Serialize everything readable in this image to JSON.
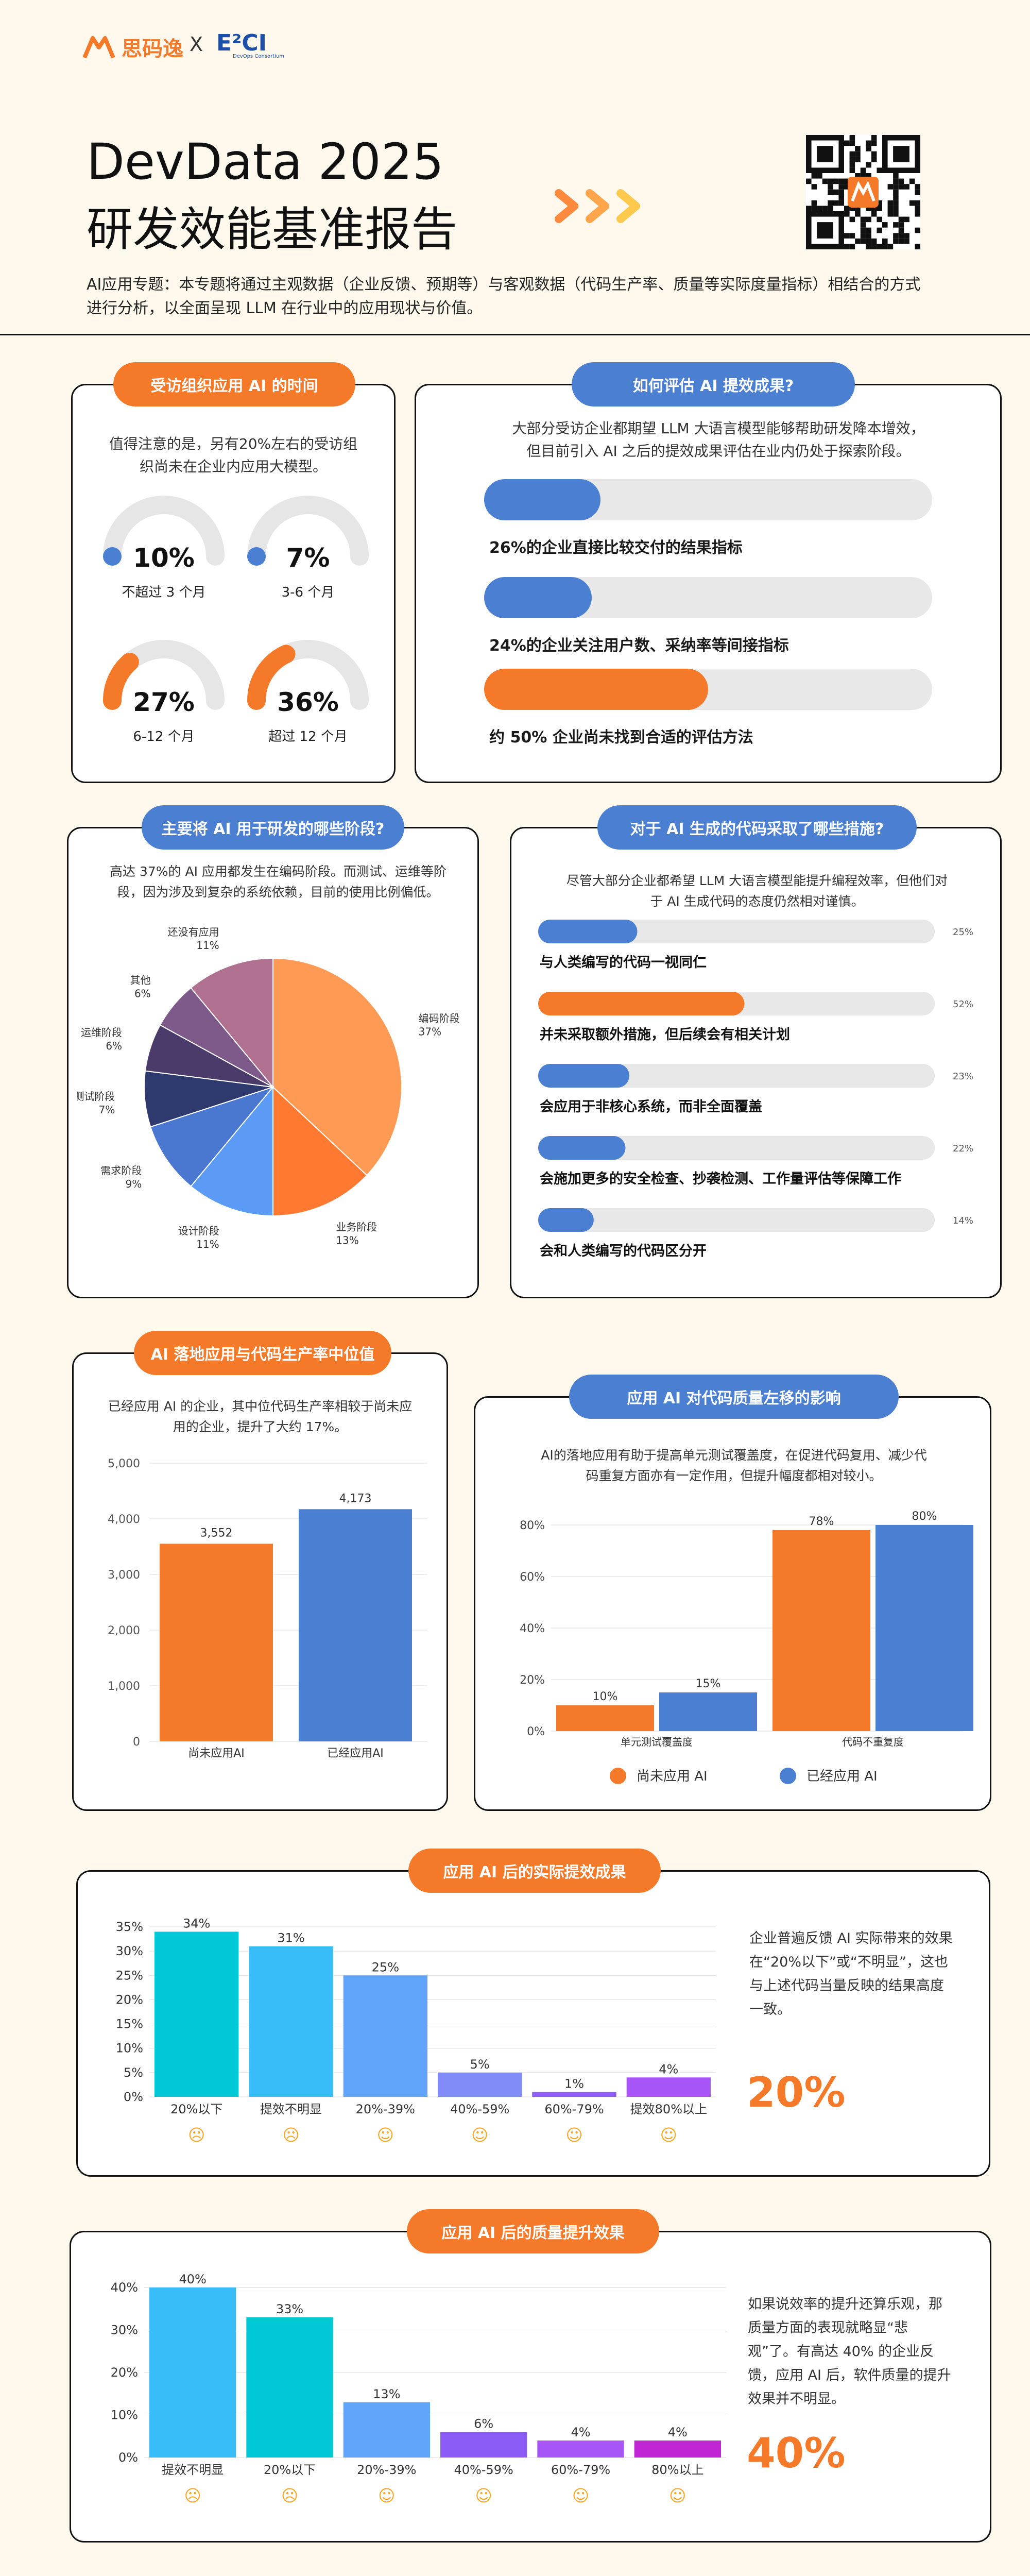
{
  "header": {
    "brand1": "思码逸",
    "times": "X",
    "brand2": "E²CI",
    "brand2_sub": "DevOps Consortium",
    "title_line1": "DevData 2025",
    "title_line2": "研发效能基准报告",
    "intro": "AI应用专题：本专题将通过主观数据（企业反馈、预期等）与客观数据（代码生产率、质量等实际度量指标）相结合的方式进行分析，以全面呈现 LLM 在行业中的应用现状与价值。"
  },
  "colors": {
    "orange": "#f47a2a",
    "blue": "#4b7fd1",
    "cyan": "#00c8d7",
    "purple": "#8b5cf6"
  },
  "card1": {
    "title": "受访组织应用 AI 的时间",
    "desc": "值得注意的是，另有20%左右的受访组织尚未在企业内应用大模型。",
    "gauges": [
      {
        "value": "10%",
        "fraction": 0.1,
        "label": "不超过 3 个月",
        "color": "#4b7fd1"
      },
      {
        "value": "7%",
        "fraction": 0.07,
        "label": "3-6 个月",
        "color": "#4b7fd1"
      },
      {
        "value": "27%",
        "fraction": 0.27,
        "label": "6-12 个月",
        "color": "#f47a2a"
      },
      {
        "value": "36%",
        "fraction": 0.36,
        "label": "超过 12 个月",
        "color": "#f47a2a"
      }
    ]
  },
  "card2": {
    "title": "如何评估 AI 提效成果?",
    "desc": "大部分受访企业都期望 LLM 大语言模型能够帮助研发降本增效，但目前引入 AI 之后的提效成果评估在业内仍处于探索阶段。",
    "bars": [
      {
        "label": "26%的企业直接比较交付的结果指标",
        "fraction": 0.26,
        "color": "#4b7fd1"
      },
      {
        "label": "24%的企业关注用户数、采纳率等间接指标",
        "fraction": 0.24,
        "color": "#4b7fd1"
      },
      {
        "label": "约 50% 企业尚未找到合适的评估方法",
        "fraction": 0.5,
        "color": "#f47a2a"
      }
    ]
  },
  "card3": {
    "title": "主要将 AI 用于研发的哪些阶段?",
    "desc": "高达 37%的 AI 应用都发生在编码阶段。而测试、运维等阶段，因为涉及到复杂的系统依赖，目前的使用比例偏低。"
  },
  "card4": {
    "title": "对于 AI 生成的代码采取了哪些措施?",
    "desc": "尽管大部分企业都希望 LLM 大语言模型能提升编程效率，但他们对于 AI 生成代码的态度仍然相对谨慎。",
    "bars": [
      {
        "label": "与人类编写的代码一视同仁",
        "pct": "25%",
        "fraction": 0.25,
        "color": "#4b7fd1"
      },
      {
        "label": "并未采取额外措施，但后续会有相关计划",
        "pct": "52%",
        "fraction": 0.52,
        "color": "#f47a2a"
      },
      {
        "label": "会应用于非核心系统，而非全面覆盖",
        "pct": "23%",
        "fraction": 0.23,
        "color": "#4b7fd1"
      },
      {
        "label": "会施加更多的安全检查、抄袭检测、工作量评估等保障工作",
        "pct": "22%",
        "fraction": 0.22,
        "color": "#4b7fd1"
      },
      {
        "label": "会和人类编写的代码区分开",
        "pct": "14%",
        "fraction": 0.14,
        "color": "#4b7fd1"
      }
    ]
  },
  "card5": {
    "title": "AI 落地应用与代码生产率中位值",
    "desc": "已经应用 AI 的企业，其中位代码生产率相较于尚未应用的企业，提升了大约 17%。"
  },
  "card6": {
    "title": "应用 AI 对代码质量左移的影响",
    "desc": "AI的落地应用有助于提高单元测试覆盖度，在促进代码复用、减少代码重复方面亦有一定作用，但提升幅度都相对较小。"
  },
  "card7": {
    "title": "应用 AI 后的实际提效成果",
    "desc": "企业普遍反馈 AI 实际带来的效果在“20%以下”或“不明显”，这也与上述代码当量反映的结果高度一致。",
    "highlight": "20%"
  },
  "card8": {
    "title": "应用 AI 后的质量提升效果",
    "desc": "如果说效率的提升还算乐观，那质量方面的表现就略显“悲观”了。有高达 40% 的企业反馈，应用 AI 后，软件质量的提升效果并不明显。",
    "highlight": "40%"
  },
  "chart_data": [
    {
      "type": "pie",
      "slices": [
        {
          "label": "编码阶段",
          "value": 37,
          "display": "37%",
          "color": "#ff9a55"
        },
        {
          "label": "业务阶段",
          "value": 13,
          "display": "13%",
          "color": "#ff7a30"
        },
        {
          "label": "设计阶段",
          "value": 11,
          "display": "11%",
          "color": "#5b9bf5"
        },
        {
          "label": "需求阶段",
          "value": 9,
          "display": "9%",
          "color": "#4a78d0"
        },
        {
          "label": "测试阶段",
          "value": 7,
          "display": "7%",
          "color": "#2e3a6e"
        },
        {
          "label": "运维阶段",
          "value": 6,
          "display": "6%",
          "color": "#4a3b6b"
        },
        {
          "label": "其他",
          "value": 6,
          "display": "6%",
          "color": "#7d5a8a"
        },
        {
          "label": "还没有应用",
          "value": 11,
          "display": "11%",
          "color": "#b07090"
        }
      ]
    },
    {
      "type": "bar",
      "categories": [
        "尚未应用AI",
        "已经应用AI"
      ],
      "values": [
        3552,
        4173
      ],
      "value_labels": [
        "3,552",
        "4,173"
      ],
      "colors": [
        "#f47a2a",
        "#4b7fd1"
      ],
      "ylim": [
        0,
        5000
      ],
      "yticks": [
        "0",
        "1,000",
        "2,000",
        "3,000",
        "4,000",
        "5,000"
      ],
      "grid": true
    },
    {
      "type": "bar",
      "categories": [
        "单元测试覆盖度",
        "代码不重复度"
      ],
      "series": [
        {
          "name": "尚未应用 AI",
          "values": [
            10,
            78
          ],
          "color": "#f47a2a"
        },
        {
          "name": "已经应用 AI",
          "values": [
            15,
            80
          ],
          "color": "#4b7fd1"
        }
      ],
      "value_labels": [
        [
          "10%",
          "78%"
        ],
        [
          "15%",
          "80%"
        ]
      ],
      "ylim": [
        0,
        80
      ],
      "yticks": [
        "0%",
        "20%",
        "40%",
        "60%",
        "80%"
      ],
      "grid": true,
      "legend": "bottom"
    },
    {
      "type": "bar",
      "categories": [
        "20%以下",
        "提效不明显",
        "20%-39%",
        "40%-59%",
        "60%-79%",
        "提效80%以上"
      ],
      "values": [
        34,
        31,
        25,
        5,
        1,
        4
      ],
      "value_labels": [
        "34%",
        "31%",
        "25%",
        "5%",
        "1%",
        "4%"
      ],
      "colors": [
        "#00c8d7",
        "#38bdf8",
        "#60a5fa",
        "#818cf8",
        "#8b5cf6",
        "#a855f7"
      ],
      "ylim": [
        0,
        35
      ],
      "yticks": [
        "0%",
        "5%",
        "10%",
        "15%",
        "20%",
        "25%",
        "30%",
        "35%"
      ],
      "grid": true
    },
    {
      "type": "bar",
      "categories": [
        "提效不明显",
        "20%以下",
        "20%-39%",
        "40%-59%",
        "60%-79%",
        "80%以上"
      ],
      "values": [
        40,
        33,
        13,
        6,
        4,
        4
      ],
      "value_labels": [
        "40%",
        "33%",
        "13%",
        "6%",
        "4%",
        "4%"
      ],
      "colors": [
        "#38bdf8",
        "#00c8d7",
        "#60a5fa",
        "#8b5cf6",
        "#a855f7",
        "#c026d3"
      ],
      "ylim": [
        0,
        40
      ],
      "yticks": [
        "0%",
        "10%",
        "20%",
        "30%",
        "40%"
      ],
      "grid": true
    }
  ]
}
